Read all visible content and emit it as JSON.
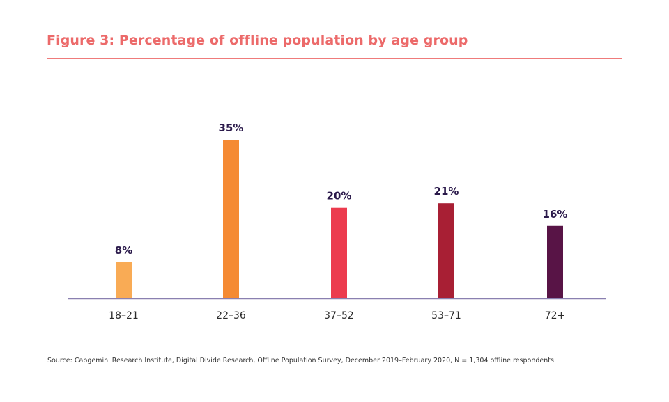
{
  "title": "Figure 3: Percentage of offline population by age group",
  "source": "Source: Capgemini Research Institute, Digital Divide Research, Offline Population Survey, December 2019–February 2020, N = 1,304 offline respondents.",
  "colors": {
    "title": "#ec6a6a",
    "axis": "#8a80b0",
    "value_label": "#2b1a4b"
  },
  "chart_data": {
    "type": "bar",
    "title": "Figure 3: Percentage of offline population by age group",
    "xlabel": "",
    "ylabel": "",
    "categories": [
      "18–21",
      "22–36",
      "37–52",
      "53–71",
      "72+"
    ],
    "values": [
      8,
      35,
      20,
      21,
      16
    ],
    "value_labels": [
      "8%",
      "35%",
      "20%",
      "21%",
      "16%"
    ],
    "bar_colors": [
      "#f9ab55",
      "#f58a33",
      "#ec3b4e",
      "#a81f34",
      "#581446"
    ],
    "ylim": [
      0,
      35
    ],
    "grid": false,
    "legend": "none",
    "unit": "%"
  }
}
